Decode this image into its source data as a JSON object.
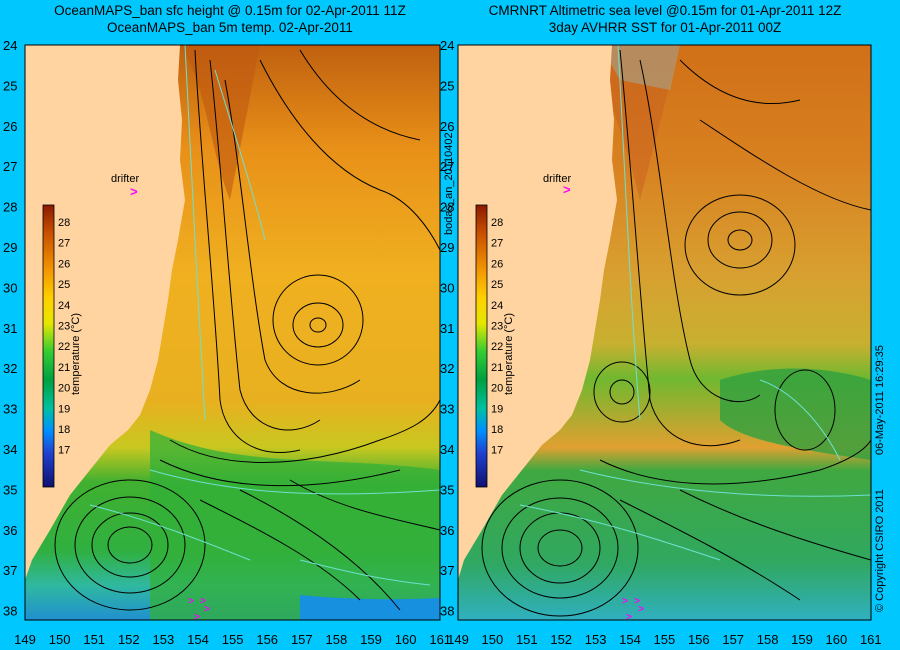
{
  "colors": {
    "background": "#00c8ff",
    "land": "#ffd4a0",
    "contour": "#000000",
    "contour_alt": "#6ee0d0",
    "drifter_marker": "#ff00ff"
  },
  "panel_left": {
    "title_line1": "OceanMAPS_ban sfc height @ 0.15m for 02-Apr-2011 11Z",
    "title_line2": "OceanMAPS_ban 5m temp. 02-Apr-2011",
    "drifter_label": "drifter",
    "side_label": "bodas_an_20110402"
  },
  "panel_right": {
    "title_line1": "CMRNRT Altimetric sea level  @0.15m  for 01-Apr-2011 12Z",
    "title_line2": "3day AVHRR SST for 01-Apr-2011 00Z",
    "drifter_label": "drifter",
    "side_label": "06-May-2011 16:29:35",
    "copyright": "© Copyright CSIRO 2011"
  },
  "lat_ticks": [
    "24",
    "25",
    "26",
    "27",
    "28",
    "29",
    "30",
    "31",
    "32",
    "33",
    "34",
    "35",
    "36",
    "37",
    "38"
  ],
  "lon_ticks": [
    "149",
    "150",
    "151",
    "152",
    "153",
    "154",
    "155",
    "156",
    "157",
    "158",
    "159",
    "160",
    "161"
  ],
  "colorbar": {
    "label": "temperature (°C)",
    "ticks": [
      "28",
      "27",
      "26",
      "25",
      "24",
      "23",
      "22",
      "21",
      "20",
      "19",
      "18",
      "17"
    ]
  }
}
